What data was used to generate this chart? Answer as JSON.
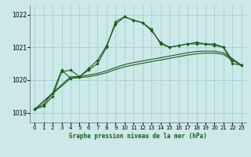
{
  "title": "Graphe pression niveau de la mer (hPa)",
  "background_color": "#cce8e8",
  "grid_color": "#99cccc",
  "line_color": "#1a5c1a",
  "xlim": [
    -0.5,
    23.5
  ],
  "ylim": [
    1018.7,
    1022.3
  ],
  "yticks": [
    1019,
    1020,
    1021,
    1022
  ],
  "xticks": [
    0,
    1,
    2,
    3,
    4,
    5,
    6,
    7,
    8,
    9,
    10,
    11,
    12,
    13,
    14,
    15,
    16,
    17,
    18,
    19,
    20,
    21,
    22,
    23
  ],
  "series_marked1_x": [
    0,
    1,
    2,
    3,
    4,
    5,
    6,
    7,
    8,
    9,
    10,
    11,
    12,
    13,
    14,
    15,
    16,
    17,
    18,
    19,
    20,
    21,
    22,
    23
  ],
  "series_marked1_y": [
    1019.1,
    1019.25,
    1019.6,
    1020.3,
    1020.05,
    1020.1,
    1020.35,
    1020.6,
    1021.05,
    1021.7,
    1021.93,
    1021.83,
    1021.75,
    1021.55,
    1021.1,
    1021.0,
    1021.05,
    1021.1,
    1021.1,
    1021.1,
    1021.05,
    1021.0,
    1020.5,
    1020.45
  ],
  "series_marked2_x": [
    0,
    1,
    2,
    3,
    4,
    5,
    6,
    7,
    8,
    9,
    10,
    11,
    12,
    13,
    14,
    15,
    16,
    17,
    18,
    19,
    20,
    21,
    22,
    23
  ],
  "series_marked2_y": [
    1019.1,
    1019.2,
    1019.5,
    1020.25,
    1020.3,
    1020.1,
    1020.3,
    1020.5,
    1021.0,
    1021.78,
    1021.93,
    1021.82,
    1021.75,
    1021.5,
    1021.15,
    1021.0,
    1021.05,
    1021.1,
    1021.15,
    1021.1,
    1021.1,
    1021.0,
    1020.6,
    1020.45
  ],
  "series_flat1_x": [
    0,
    4,
    5,
    6,
    7,
    8,
    9,
    10,
    11,
    12,
    13,
    14,
    15,
    16,
    17,
    18,
    19,
    20,
    21,
    22,
    23
  ],
  "series_flat1_y": [
    1019.1,
    1020.1,
    1020.1,
    1020.15,
    1020.2,
    1020.28,
    1020.38,
    1020.47,
    1020.53,
    1020.58,
    1020.63,
    1020.68,
    1020.73,
    1020.78,
    1020.83,
    1020.87,
    1020.88,
    1020.88,
    1020.83,
    1020.65,
    1020.45
  ],
  "series_flat2_x": [
    0,
    4,
    5,
    6,
    7,
    8,
    9,
    10,
    11,
    12,
    13,
    14,
    15,
    16,
    17,
    18,
    19,
    20,
    21,
    22,
    23
  ],
  "series_flat2_y": [
    1019.1,
    1020.05,
    1020.07,
    1020.1,
    1020.15,
    1020.22,
    1020.32,
    1020.4,
    1020.46,
    1020.51,
    1020.56,
    1020.61,
    1020.66,
    1020.71,
    1020.76,
    1020.8,
    1020.82,
    1020.82,
    1020.78,
    1020.6,
    1020.45
  ]
}
